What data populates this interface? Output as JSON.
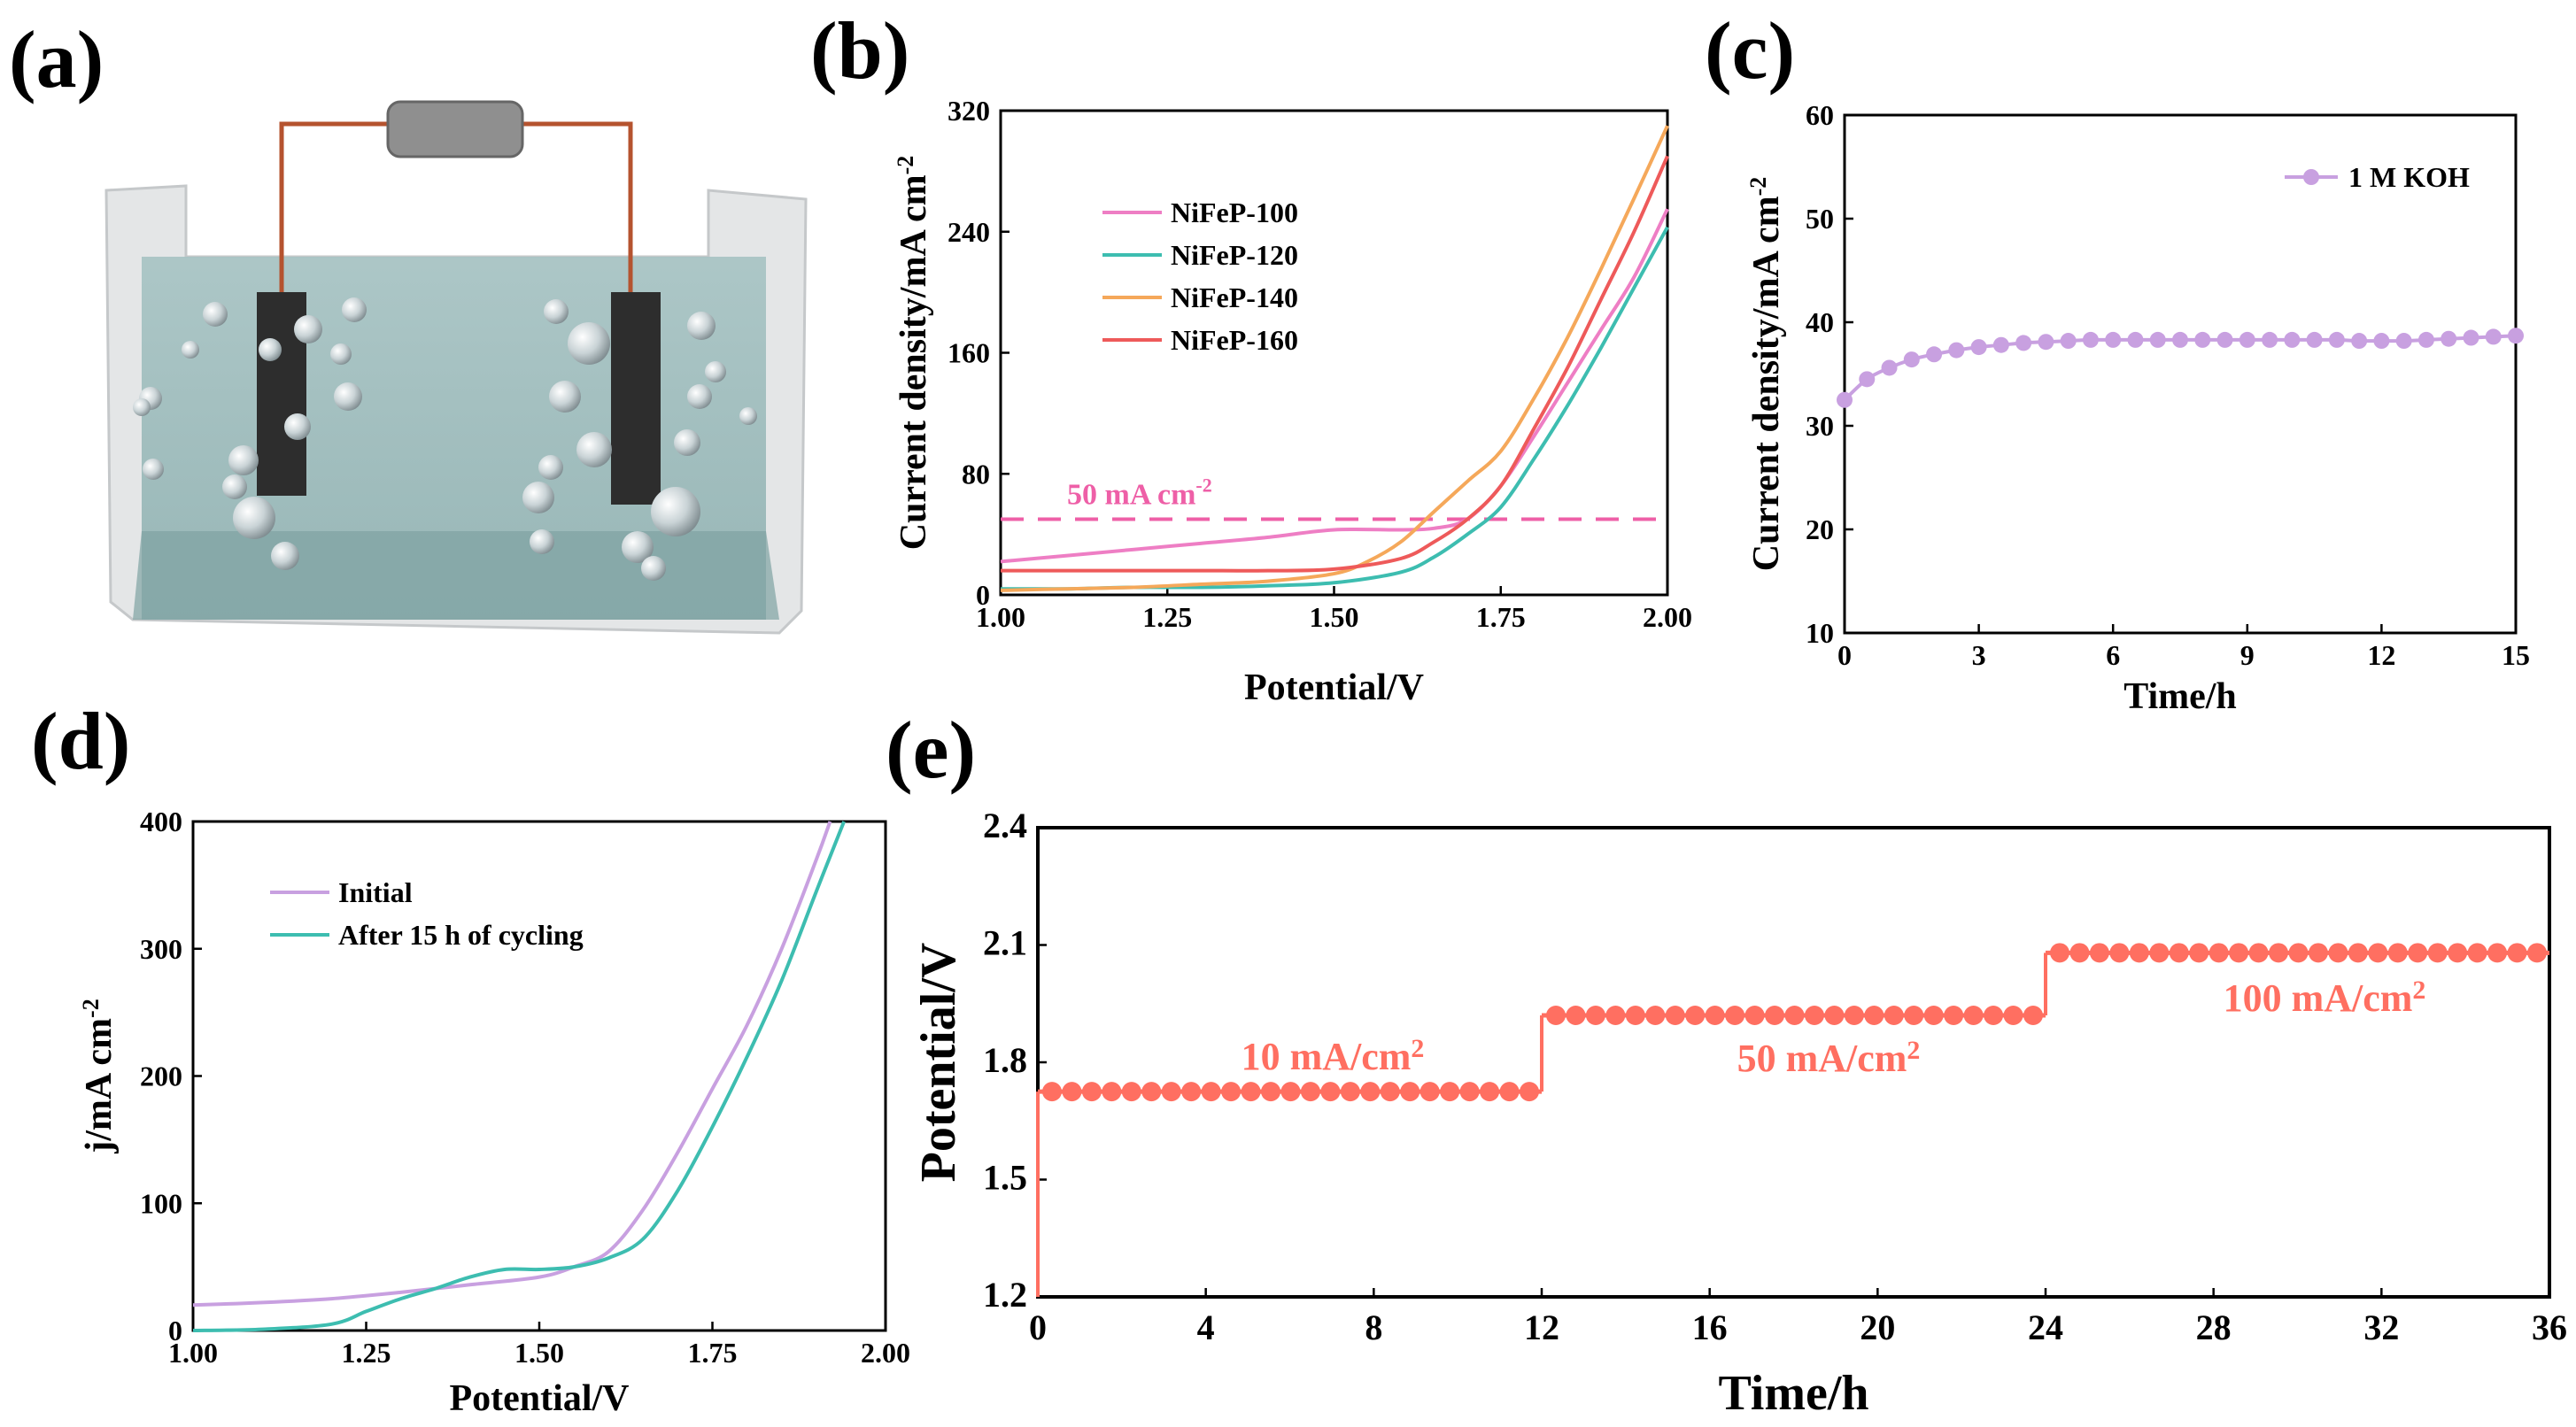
{
  "panels": {
    "a": {
      "label": "(a)"
    },
    "b": {
      "label": "(b)"
    },
    "c": {
      "label": "(c)"
    },
    "d": {
      "label": "(d)"
    },
    "e": {
      "label": "(e)"
    }
  },
  "chart_data": [
    {
      "id": "b",
      "type": "line",
      "xlabel": "Potential/V",
      "ylabel": "Current density/mA cm",
      "ylabel_sup": "-2",
      "xlim": [
        1.0,
        2.0
      ],
      "ylim": [
        0,
        320
      ],
      "xticks": [
        "1.00",
        "1.25",
        "1.50",
        "1.75",
        "2.00"
      ],
      "yticks": [
        "0",
        "80",
        "160",
        "240",
        "320"
      ],
      "annotation": {
        "text": "50 mA cm",
        "sup": "-2",
        "y": 50,
        "color": "#ee5fa7"
      },
      "series": [
        {
          "name": "NiFeP-100",
          "color": "#ee7ec4",
          "x": [
            1.0,
            1.1,
            1.2,
            1.3,
            1.4,
            1.5,
            1.6,
            1.65,
            1.7,
            1.75,
            1.8,
            1.85,
            1.9,
            1.95,
            2.0
          ],
          "y": [
            22,
            26,
            30,
            34,
            38,
            43,
            43,
            44,
            50,
            72,
            105,
            140,
            175,
            210,
            255
          ]
        },
        {
          "name": "NiFeP-120",
          "color": "#3dbdb0",
          "x": [
            1.0,
            1.1,
            1.2,
            1.3,
            1.4,
            1.5,
            1.6,
            1.65,
            1.7,
            1.75,
            1.8,
            1.85,
            1.9,
            1.95,
            2.0
          ],
          "y": [
            4,
            4,
            5,
            5,
            6,
            8,
            15,
            25,
            40,
            58,
            90,
            125,
            163,
            203,
            243
          ]
        },
        {
          "name": "NiFeP-140",
          "color": "#f5a85a",
          "x": [
            1.0,
            1.1,
            1.2,
            1.3,
            1.4,
            1.5,
            1.55,
            1.6,
            1.65,
            1.7,
            1.75,
            1.8,
            1.85,
            1.9,
            1.95,
            2.0
          ],
          "y": [
            3,
            4,
            5,
            7,
            9,
            14,
            22,
            35,
            55,
            75,
            95,
            130,
            170,
            215,
            262,
            310
          ]
        },
        {
          "name": "NiFeP-160",
          "color": "#ee5a5a",
          "x": [
            1.0,
            1.1,
            1.2,
            1.3,
            1.4,
            1.5,
            1.6,
            1.65,
            1.7,
            1.75,
            1.8,
            1.85,
            1.9,
            1.95,
            2.0
          ],
          "y": [
            16,
            16,
            16,
            16,
            16,
            17,
            24,
            35,
            50,
            72,
            110,
            150,
            195,
            240,
            290
          ]
        }
      ]
    },
    {
      "id": "c",
      "type": "scatter",
      "xlabel": "Time/h",
      "ylabel": "Current density/mA cm",
      "ylabel_sup": "-2",
      "xlim": [
        0,
        15
      ],
      "ylim": [
        10,
        60
      ],
      "xticks": [
        "0",
        "3",
        "6",
        "9",
        "12",
        "15"
      ],
      "yticks": [
        "10",
        "20",
        "30",
        "40",
        "50",
        "60"
      ],
      "series": [
        {
          "name": "1 M KOH",
          "color": "#c8a0e0",
          "x": [
            0,
            0.5,
            1,
            1.5,
            2,
            2.5,
            3,
            3.5,
            4,
            4.5,
            5,
            5.5,
            6,
            6.5,
            7,
            7.5,
            8,
            8.5,
            9,
            9.5,
            10,
            10.5,
            11,
            11.5,
            12,
            12.5,
            13,
            13.5,
            14,
            14.5,
            15
          ],
          "y": [
            32.5,
            34.5,
            35.6,
            36.4,
            36.9,
            37.3,
            37.6,
            37.8,
            38.0,
            38.1,
            38.2,
            38.3,
            38.3,
            38.3,
            38.3,
            38.3,
            38.3,
            38.3,
            38.3,
            38.3,
            38.3,
            38.3,
            38.3,
            38.2,
            38.2,
            38.2,
            38.3,
            38.4,
            38.5,
            38.6,
            38.7
          ]
        }
      ]
    },
    {
      "id": "d",
      "type": "line",
      "xlabel": "Potential/V",
      "ylabel": "j/mA cm",
      "ylabel_sup": "-2",
      "xlim": [
        1.0,
        2.0
      ],
      "ylim": [
        0,
        400
      ],
      "xticks": [
        "1.00",
        "1.25",
        "1.50",
        "1.75",
        "2.00"
      ],
      "yticks": [
        "0",
        "100",
        "200",
        "300",
        "400"
      ],
      "series": [
        {
          "name": "Initial",
          "color": "#c8a0e0",
          "x": [
            1.0,
            1.1,
            1.2,
            1.3,
            1.4,
            1.5,
            1.55,
            1.6,
            1.65,
            1.7,
            1.75,
            1.8,
            1.85,
            1.9,
            1.92
          ],
          "y": [
            20,
            22,
            25,
            30,
            36,
            42,
            50,
            62,
            95,
            140,
            190,
            240,
            300,
            370,
            400
          ]
        },
        {
          "name": "After 15 h of cycling",
          "color": "#3dbdb0",
          "x": [
            1.0,
            1.1,
            1.2,
            1.25,
            1.3,
            1.35,
            1.4,
            1.45,
            1.5,
            1.55,
            1.6,
            1.65,
            1.7,
            1.75,
            1.8,
            1.85,
            1.9,
            1.94
          ],
          "y": [
            0,
            1,
            5,
            15,
            25,
            33,
            42,
            48,
            48,
            50,
            57,
            72,
            110,
            160,
            215,
            275,
            345,
            400
          ]
        }
      ]
    },
    {
      "id": "e",
      "type": "scatter",
      "xlabel": "Time/h",
      "ylabel": "Potential/V",
      "xlim": [
        0,
        36
      ],
      "ylim": [
        1.2,
        2.4
      ],
      "xticks": [
        "0",
        "4",
        "8",
        "12",
        "16",
        "20",
        "24",
        "28",
        "32",
        "36"
      ],
      "yticks": [
        "1.2",
        "1.5",
        "1.8",
        "2.1",
        "2.4"
      ],
      "color": "#ff6f61",
      "segments": [
        {
          "label": "10 mA/cm",
          "sup": "2",
          "t0": 0,
          "t1": 12,
          "v": 1.725
        },
        {
          "label": "50 mA/cm",
          "sup": "2",
          "t0": 12,
          "t1": 24,
          "v": 1.92
        },
        {
          "label": "100 mA/cm",
          "sup": "2",
          "t0": 24,
          "t1": 36,
          "v": 2.08
        }
      ]
    }
  ]
}
